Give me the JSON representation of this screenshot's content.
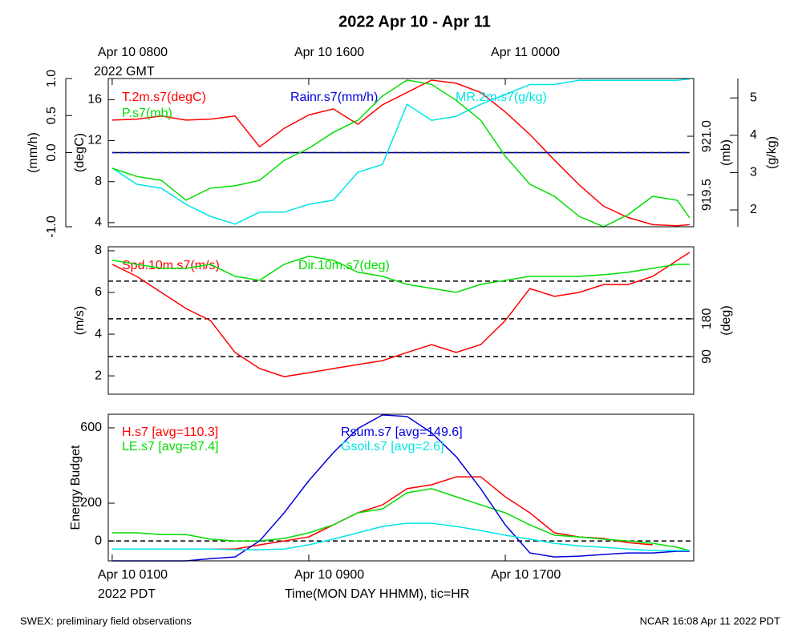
{
  "chart_data": [
    {
      "type": "line",
      "title": "2022 Apr 10 - Apr 11",
      "x": [
        0,
        1,
        2,
        3,
        4,
        5,
        6,
        7,
        8,
        9,
        10,
        11,
        12,
        13,
        14,
        15,
        16,
        17,
        18,
        19,
        20,
        21,
        22,
        23,
        23.5
      ],
      "xlim": [
        -0.16,
        23.67
      ],
      "x2ticks": [
        {
          "value": 0,
          "label": "Apr 10 0800"
        },
        {
          "value": 8,
          "label": "Apr 10 1600"
        },
        {
          "value": 16,
          "label": "Apr 11 0000"
        }
      ],
      "x2sublabel": "2022 GMT",
      "ylabel": "(degC)",
      "ylim": [
        3.6,
        18.06
      ],
      "yticks": [
        4,
        8,
        12,
        16
      ],
      "y2label": "(mb)",
      "y2lim": [
        918.68,
        922.48
      ],
      "y2ticks": [
        919.5,
        {
          "value": 921,
          "label": "921.0"
        }
      ],
      "y3label": "(mm/h)",
      "y3lim": [
        -1,
        1
      ],
      "y3ticks": [
        {
          "value": -1,
          "label": "-1.0"
        },
        {
          "value": 0,
          "label": "0.0"
        },
        0.5,
        {
          "value": 1,
          "label": "1.0"
        }
      ],
      "y4label": "(g/kg)",
      "y4lim": [
        1.55,
        5.52
      ],
      "y4ticks": [
        2,
        3,
        4,
        5
      ],
      "series": [
        {
          "name": "T.2m.s7(degC)",
          "color": "#ff0000",
          "axis": "y",
          "values": [
            14.0,
            14.1,
            14.4,
            14.0,
            14.1,
            14.4,
            11.4,
            13.2,
            14.5,
            15.1,
            13.6,
            15.5,
            16.7,
            17.9,
            17.6,
            16.7,
            14.8,
            12.6,
            10.1,
            7.7,
            5.6,
            4.5,
            3.8,
            3.7,
            3.8
          ]
        },
        {
          "name": "Rainr.s7(mm/h)",
          "color": "#0000dd",
          "axis": "y3",
          "dashed": true,
          "values": [
            0,
            0,
            0,
            0,
            0,
            0,
            0,
            0,
            0,
            0,
            0,
            0,
            0,
            0,
            0,
            0,
            0,
            0,
            0,
            0,
            0,
            0,
            0,
            0,
            0
          ]
        },
        {
          "name": "MR.2m.s7(g/kg)",
          "color": "#00e5e5",
          "axis": "y4",
          "values": [
            3.12,
            2.69,
            2.58,
            2.15,
            1.83,
            1.62,
            1.94,
            1.94,
            2.15,
            2.26,
            3.01,
            3.22,
            4.83,
            4.4,
            4.51,
            4.83,
            5.09,
            5.36,
            5.36,
            5.47,
            5.47,
            5.47,
            5.47,
            5.47,
            5.51
          ]
        },
        {
          "name": "P.s7(mb)",
          "color": "#00dd00",
          "axis": "y2",
          "values": [
            920.18,
            919.97,
            919.87,
            919.36,
            919.67,
            919.73,
            919.87,
            920.38,
            920.69,
            921.1,
            921.41,
            922.03,
            922.44,
            922.33,
            921.92,
            921.41,
            920.49,
            919.77,
            919.46,
            918.95,
            918.68,
            918.99,
            919.46,
            919.36,
            918.91
          ]
        }
      ]
    },
    {
      "type": "line",
      "x": [
        0,
        1,
        2,
        3,
        4,
        5,
        6,
        7,
        8,
        9,
        10,
        11,
        12,
        13,
        14,
        15,
        16,
        17,
        18,
        19,
        20,
        21,
        22,
        23,
        23.5
      ],
      "xlim": [
        -0.16,
        23.67
      ],
      "ylabel": "(m/s)",
      "ylim": [
        1.12,
        8.19
      ],
      "yticks": [
        2,
        4,
        6,
        8
      ],
      "y2label": "(deg)",
      "y2lim": [
        0,
        352
      ],
      "y2ticks": [
        90,
        180
      ],
      "y2grid": [
        90,
        180,
        270
      ],
      "series": [
        {
          "name": "Spd.10m.s7(m/s)",
          "color": "#ff0000",
          "axis": "y",
          "values": [
            7.35,
            6.77,
            6.0,
            5.23,
            4.65,
            3.12,
            2.35,
            1.96,
            2.15,
            2.35,
            2.54,
            2.73,
            3.12,
            3.5,
            3.12,
            3.5,
            4.65,
            6.19,
            5.81,
            6.0,
            6.38,
            6.38,
            6.77,
            7.54,
            7.92
          ]
        },
        {
          "name": "Dir.10m.s7(deg)",
          "color": "#00dd00",
          "axis": "y2",
          "values": [
            319.8,
            310.2,
            300.6,
            300.6,
            310.2,
            281.5,
            271.9,
            310.2,
            329.4,
            319.8,
            291.1,
            281.5,
            262.3,
            252.8,
            243.2,
            262.3,
            271.9,
            281.5,
            281.5,
            281.5,
            285.3,
            291.1,
            300.6,
            310.2,
            310.2
          ]
        }
      ]
    },
    {
      "type": "line",
      "x": [
        0,
        1,
        2,
        3,
        4,
        5,
        6,
        7,
        8,
        9,
        10,
        11,
        12,
        13,
        14,
        15,
        16,
        17,
        18,
        19,
        20,
        21,
        22,
        23,
        23.5
      ],
      "xlim": [
        -0.16,
        23.67
      ],
      "xticks": [
        {
          "value": 0,
          "label": "Apr 10 0100"
        },
        {
          "value": 8,
          "label": "Apr 10 0900"
        },
        {
          "value": 16,
          "label": "Apr 10 1700"
        }
      ],
      "xsublabel": "2022 PDT",
      "xlabel": "Time(MON DAY HHMM), tic=HR",
      "ylabel": "Energy Budget",
      "ylim": [
        -106,
        672
      ],
      "yticks": [
        0,
        200,
        600
      ],
      "ygrid": [
        0
      ],
      "series": [
        {
          "name": "H.s7 [avg=110.3]",
          "color": "#ff0000",
          "axis": "y",
          "values": [
            null,
            null,
            null,
            null,
            -43,
            -43,
            -21,
            0,
            21,
            85,
            149,
            191,
            277,
            298,
            340,
            340,
            234,
            149,
            43,
            21,
            13,
            -9,
            -21,
            null,
            null
          ]
        },
        {
          "name": "LE.s7 [avg=87.4]",
          "color": "#00dd00",
          "axis": "y",
          "values": [
            43,
            43,
            34,
            34,
            9,
            0,
            0,
            13,
            43,
            85,
            149,
            170,
            255,
            277,
            234,
            191,
            149,
            85,
            30,
            21,
            9,
            0,
            -13,
            -34,
            -51
          ]
        },
        {
          "name": "Rsum.s7 [avg=149.6]",
          "color": "#0000dd",
          "axis": "y",
          "values": [
            -106,
            -106,
            -106,
            -106,
            -94,
            -85,
            0,
            149,
            319,
            468,
            596,
            668,
            660,
            574,
            447,
            277,
            85,
            -64,
            -85,
            -81,
            -72,
            -64,
            -64,
            -55,
            -55
          ]
        },
        {
          "name": "Gsoil.s7 [avg=2.6]",
          "color": "#00e5e5",
          "axis": "y",
          "values": [
            -43,
            -43,
            -43,
            -43,
            -43,
            -47,
            -47,
            -43,
            -21,
            9,
            43,
            77,
            94,
            94,
            77,
            55,
            30,
            9,
            -13,
            -26,
            -34,
            -43,
            -51,
            -51,
            -51
          ]
        }
      ]
    }
  ],
  "footer": {
    "left": "SWEX: preliminary field observations",
    "right": "NCAR 16:08 Apr 11 2022 PDT"
  }
}
